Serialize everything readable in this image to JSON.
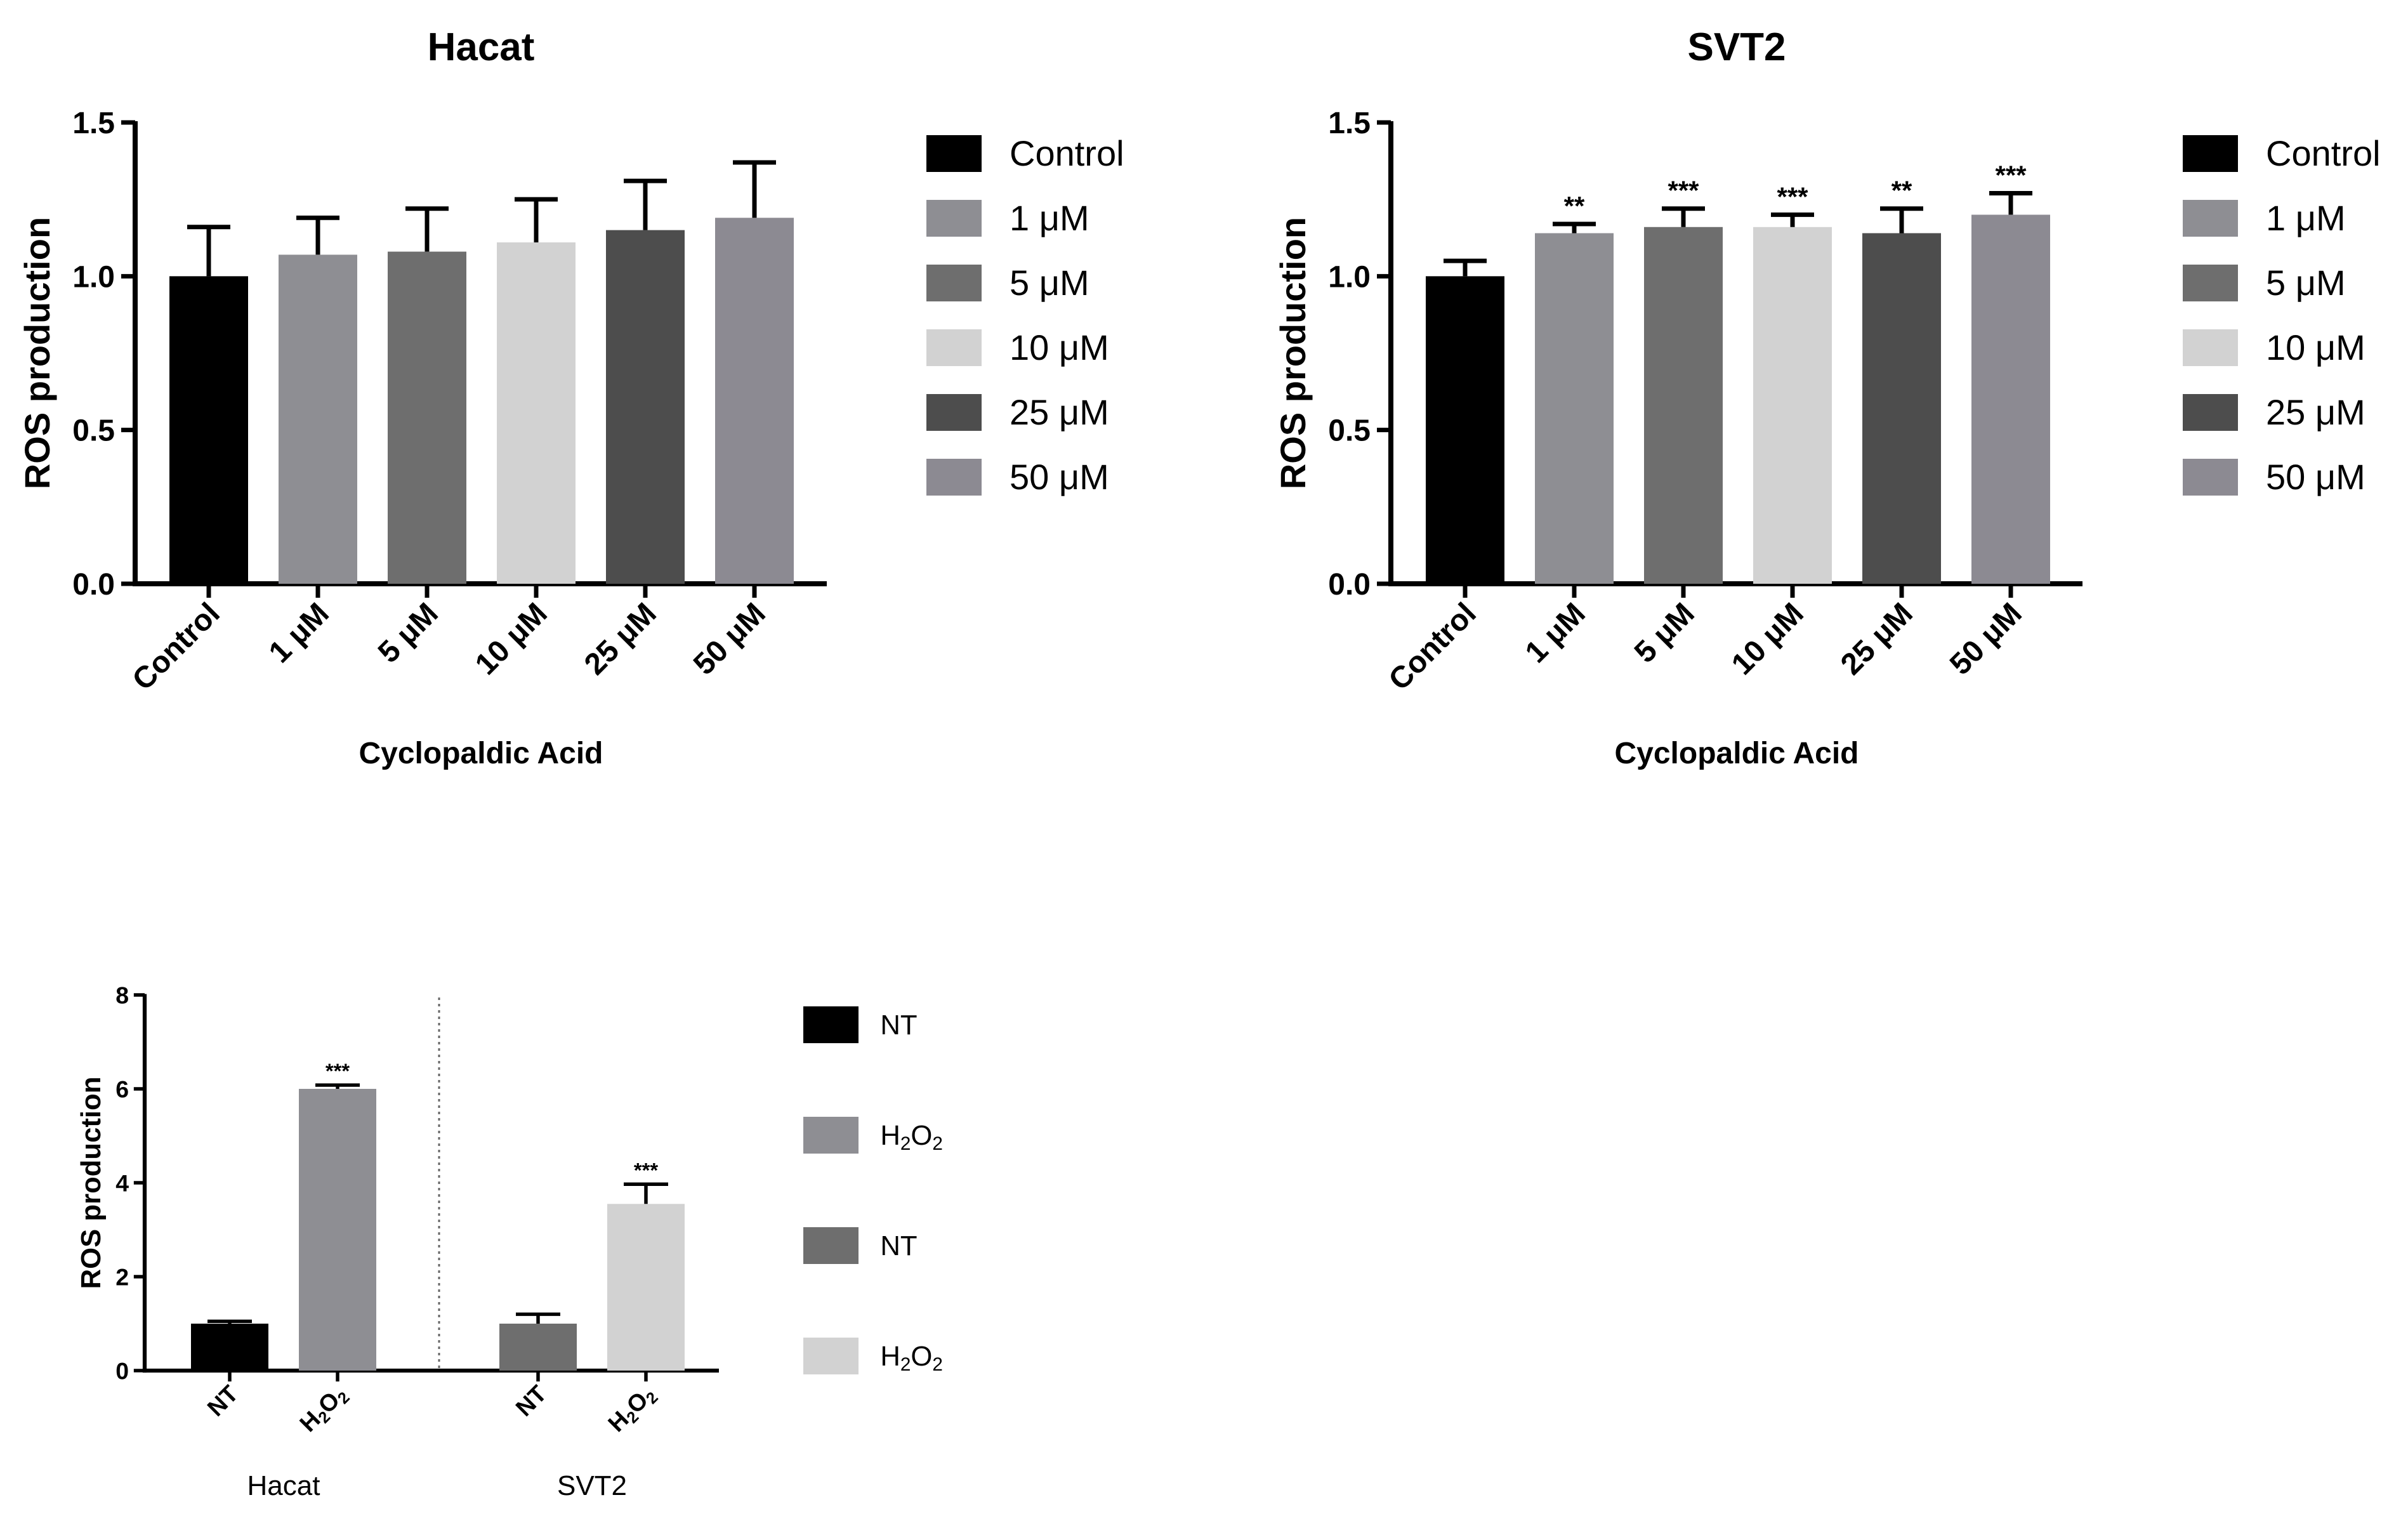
{
  "colors": {
    "black": "#000000",
    "gray_mid": "#8e8e93",
    "gray_dark": "#6e6e6e",
    "gray_light": "#d2d2d2",
    "gray_darker": "#4d4d4d",
    "gray_purple": "#8c8a92"
  },
  "chart_data": [
    {
      "type": "bar",
      "title": "Hacat",
      "xlabel": "Cyclopaldic Acid",
      "ylabel": "ROS production",
      "ylim": [
        0,
        1.5
      ],
      "yticks": [
        "0.0",
        "0.5",
        "1.0",
        "1.5"
      ],
      "categories": [
        "Control",
        "1 μM",
        "5 μM",
        "10 μM",
        "25 μM",
        "50 μM"
      ],
      "values": [
        1.0,
        1.07,
        1.08,
        1.11,
        1.15,
        1.19
      ],
      "errors": [
        0.16,
        0.12,
        0.14,
        0.14,
        0.16,
        0.18
      ],
      "significance": [
        "",
        "",
        "",
        "",
        "",
        ""
      ],
      "bar_colors": [
        "#000000",
        "#8e8e93",
        "#6e6e6e",
        "#d2d2d2",
        "#4d4d4d",
        "#8c8a92"
      ],
      "legend": [
        "Control",
        "1 μM",
        "5 μM",
        "10 μM",
        "25 μM",
        "50 μM"
      ],
      "legend_position": "right"
    },
    {
      "type": "bar",
      "title": "SVT2",
      "xlabel": "Cyclopaldic Acid",
      "ylabel": "ROS production",
      "ylim": [
        0,
        1.5
      ],
      "yticks": [
        "0.0",
        "0.5",
        "1.0",
        "1.5"
      ],
      "categories": [
        "Control",
        "1 μM",
        "5 μM",
        "10 μM",
        "25 μM",
        "50 μM"
      ],
      "values": [
        1.0,
        1.14,
        1.16,
        1.16,
        1.14,
        1.2
      ],
      "errors": [
        0.05,
        0.03,
        0.06,
        0.04,
        0.08,
        0.07
      ],
      "significance": [
        "",
        "**",
        "***",
        "***",
        "**",
        "***"
      ],
      "bar_colors": [
        "#000000",
        "#8e8e93",
        "#6e6e6e",
        "#d2d2d2",
        "#4d4d4d",
        "#8c8a92"
      ],
      "legend": [
        "Control",
        "1 μM",
        "5 μM",
        "10 μM",
        "25 μM",
        "50 μM"
      ],
      "legend_position": "right"
    },
    {
      "type": "bar",
      "title": "",
      "xlabel": "",
      "ylabel": "ROS production",
      "ylim": [
        0,
        8
      ],
      "yticks": [
        "0",
        "2",
        "4",
        "6",
        "8"
      ],
      "groups": [
        "Hacat",
        "SVT2"
      ],
      "categories": [
        "NT",
        "H2O2",
        "NT",
        "H2O2"
      ],
      "category_group": [
        0,
        0,
        1,
        1
      ],
      "values": [
        1.0,
        6.0,
        1.0,
        3.55
      ],
      "errors": [
        0.05,
        0.08,
        0.2,
        0.42
      ],
      "significance": [
        "",
        "***",
        "",
        "***"
      ],
      "bar_colors": [
        "#000000",
        "#8e8e93",
        "#6e6e6e",
        "#d2d2d2"
      ],
      "legend": [
        "NT",
        "H2O2",
        "NT",
        "H2O2"
      ],
      "legend_position": "right"
    }
  ]
}
